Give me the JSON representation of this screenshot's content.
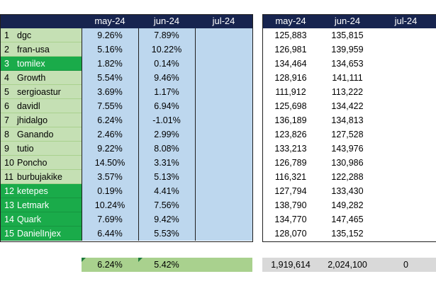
{
  "months": [
    "may-24",
    "jun-24",
    "jul-24"
  ],
  "rows": [
    {
      "num": "1",
      "name": "dgc",
      "pct_may": "9.26%",
      "pct_jun": "7.89%",
      "val_may": "125,883",
      "val_jun": "135,815",
      "highlight": false
    },
    {
      "num": "2",
      "name": "fran-usa",
      "pct_may": "5.16%",
      "pct_jun": "10.22%",
      "val_may": "126,981",
      "val_jun": "139,959",
      "highlight": false
    },
    {
      "num": "3",
      "name": "tomilex",
      "pct_may": "1.82%",
      "pct_jun": "0.14%",
      "val_may": "134,464",
      "val_jun": "134,653",
      "highlight": true
    },
    {
      "num": "4",
      "name": "Growth",
      "pct_may": "5.54%",
      "pct_jun": "9.46%",
      "val_may": "128,916",
      "val_jun": "141,111",
      "highlight": false
    },
    {
      "num": "5",
      "name": "sergioastur",
      "pct_may": "3.69%",
      "pct_jun": "1.17%",
      "val_may": "111,912",
      "val_jun": "113,222",
      "highlight": false
    },
    {
      "num": "6",
      "name": "davidl",
      "pct_may": "7.55%",
      "pct_jun": "6.94%",
      "val_may": "125,698",
      "val_jun": "134,422",
      "highlight": false
    },
    {
      "num": "7",
      "name": "jhidalgo",
      "pct_may": "6.24%",
      "pct_jun": "-1.01%",
      "val_may": "136,189",
      "val_jun": "134,813",
      "highlight": false
    },
    {
      "num": "8",
      "name": "Ganando",
      "pct_may": "2.46%",
      "pct_jun": "2.99%",
      "val_may": "123,826",
      "val_jun": "127,528",
      "highlight": false
    },
    {
      "num": "9",
      "name": "tutio",
      "pct_may": "9.22%",
      "pct_jun": "8.08%",
      "val_may": "133,213",
      "val_jun": "143,976",
      "highlight": false
    },
    {
      "num": "10",
      "name": "Poncho",
      "pct_may": "14.50%",
      "pct_jun": "3.31%",
      "val_may": "126,789",
      "val_jun": "130,986",
      "highlight": false
    },
    {
      "num": "11",
      "name": "burbujakike",
      "pct_may": "3.57%",
      "pct_jun": "5.13%",
      "val_may": "116,321",
      "val_jun": "122,288",
      "highlight": false
    },
    {
      "num": "12",
      "name": "ketepes",
      "pct_may": "0.19%",
      "pct_jun": "4.41%",
      "val_may": "127,794",
      "val_jun": "133,430",
      "highlight": true
    },
    {
      "num": "13",
      "name": "Letmark",
      "pct_may": "10.24%",
      "pct_jun": "7.56%",
      "val_may": "138,790",
      "val_jun": "149,282",
      "highlight": true
    },
    {
      "num": "14",
      "name": "Quark",
      "pct_may": "7.69%",
      "pct_jun": "9.42%",
      "val_may": "134,770",
      "val_jun": "147,465",
      "highlight": true
    },
    {
      "num": "15",
      "name": "DanielInjex",
      "pct_may": "6.44%",
      "pct_jun": "5.53%",
      "val_may": "128,070",
      "val_jun": "135,152",
      "highlight": true
    }
  ],
  "totals": {
    "pct_may": "6.24%",
    "pct_jun": "5.42%",
    "val_may": "1,919,614",
    "val_jun": "2,024,100",
    "val_jul": "0"
  },
  "colors": {
    "header_bg": "#17244f",
    "name_bg": "#c5e0b4",
    "highlight_bg": "#1aab4a",
    "pct_bg": "#bdd7ee",
    "total_pct_bg": "#a9d18e",
    "total_val_bg": "#d9d9d9"
  }
}
